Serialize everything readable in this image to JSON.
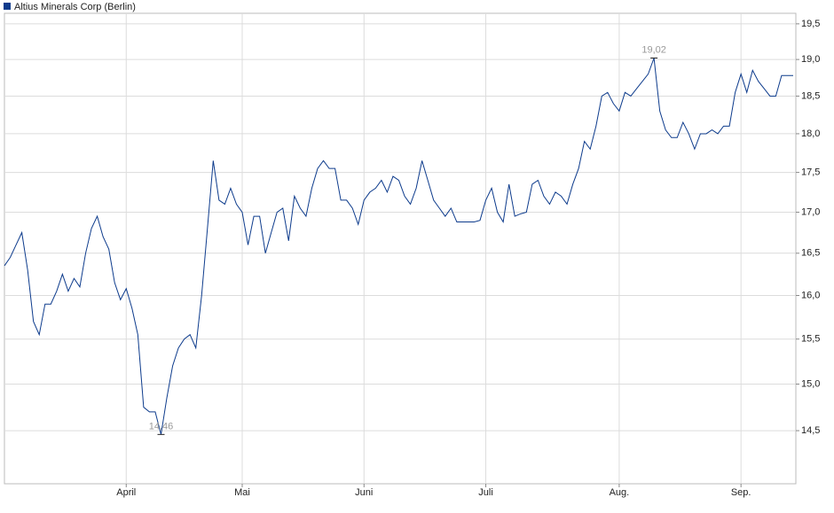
{
  "chart_data": {
    "type": "line",
    "categories": [
      null,
      null,
      null,
      null,
      null,
      null,
      null,
      null,
      null,
      null,
      null,
      null,
      null,
      null,
      null,
      null,
      null,
      null,
      null,
      null,
      null,
      "April",
      null,
      null,
      null,
      null,
      null,
      null,
      null,
      null,
      null,
      null,
      null,
      null,
      null,
      null,
      null,
      null,
      null,
      null,
      null,
      "Mai",
      null,
      null,
      null,
      null,
      null,
      null,
      null,
      null,
      null,
      null,
      null,
      null,
      null,
      null,
      null,
      null,
      null,
      null,
      null,
      null,
      "Juni",
      null,
      null,
      null,
      null,
      null,
      null,
      null,
      null,
      null,
      null,
      null,
      null,
      null,
      null,
      null,
      null,
      null,
      null,
      null,
      null,
      "Juli",
      null,
      null,
      null,
      null,
      null,
      null,
      null,
      null,
      null,
      null,
      null,
      null,
      null,
      null,
      null,
      null,
      null,
      null,
      null,
      null,
      null,
      null,
      "Aug.",
      null,
      null,
      null,
      null,
      null,
      null,
      null,
      null,
      null,
      null,
      null,
      null,
      null,
      null,
      null,
      null,
      null,
      null,
      null,
      null,
      "Sep.",
      null,
      null,
      null,
      null,
      null,
      null,
      null,
      null,
      null
    ],
    "series": [
      {
        "name": "Altius Minerals Corp (Berlin)",
        "color": "#0d3b8c",
        "values": [
          16.35,
          16.45,
          16.6,
          16.75,
          16.3,
          15.7,
          15.55,
          15.9,
          15.9,
          16.05,
          16.25,
          16.05,
          16.2,
          16.1,
          16.5,
          16.8,
          16.95,
          16.7,
          16.55,
          16.15,
          15.95,
          16.08,
          15.85,
          15.55,
          14.75,
          14.7,
          14.7,
          14.46,
          14.85,
          15.2,
          15.4,
          15.5,
          15.55,
          15.4,
          16.0,
          16.8,
          17.65,
          17.15,
          17.1,
          17.3,
          17.1,
          17.0,
          16.6,
          16.95,
          16.95,
          16.5,
          16.75,
          17.0,
          17.05,
          16.65,
          17.2,
          17.05,
          16.95,
          17.3,
          17.55,
          17.65,
          17.55,
          17.55,
          17.15,
          17.15,
          17.05,
          16.85,
          17.15,
          17.25,
          17.3,
          17.4,
          17.25,
          17.45,
          17.4,
          17.2,
          17.1,
          17.3,
          17.65,
          17.4,
          17.15,
          17.05,
          16.95,
          17.05,
          16.88,
          16.88,
          16.88,
          16.88,
          16.9,
          17.15,
          17.3,
          17.0,
          16.88,
          17.35,
          16.95,
          16.98,
          17.0,
          17.35,
          17.4,
          17.2,
          17.1,
          17.25,
          17.2,
          17.1,
          17.35,
          17.55,
          17.9,
          17.8,
          18.1,
          18.5,
          18.55,
          18.4,
          18.3,
          18.55,
          18.5,
          18.6,
          18.7,
          18.8,
          19.02,
          18.3,
          18.05,
          17.95,
          17.95,
          18.15,
          18.0,
          17.8,
          18.0,
          18.0,
          18.05,
          18.0,
          18.1,
          18.1,
          18.55,
          18.8,
          18.55,
          18.85,
          18.7,
          18.6,
          18.5,
          18.5,
          18.78,
          18.78,
          18.78
        ],
        "value_labels": [
          null,
          null,
          null,
          null,
          null,
          null,
          null,
          null,
          null,
          null,
          null,
          null,
          null,
          null,
          null,
          null,
          null,
          null,
          null,
          null,
          null,
          null,
          null,
          null,
          null,
          null,
          null,
          "14,46",
          null,
          null,
          null,
          null,
          null,
          null,
          null,
          null,
          null,
          null,
          null,
          null,
          null,
          null,
          null,
          null,
          null,
          null,
          null,
          null,
          null,
          null,
          null,
          null,
          null,
          null,
          null,
          null,
          null,
          null,
          null,
          null,
          null,
          null,
          null,
          null,
          null,
          null,
          null,
          null,
          null,
          null,
          null,
          null,
          null,
          null,
          null,
          null,
          null,
          null,
          null,
          null,
          null,
          null,
          null,
          null,
          null,
          null,
          null,
          null,
          null,
          null,
          null,
          null,
          null,
          null,
          null,
          null,
          null,
          null,
          null,
          null,
          null,
          null,
          null,
          null,
          null,
          null,
          null,
          null,
          null,
          null,
          null,
          null,
          "19,02",
          null,
          null,
          null,
          null,
          null,
          null,
          null,
          null,
          null,
          null,
          null,
          null,
          null,
          null,
          null,
          null,
          null,
          null,
          null,
          null,
          null,
          null,
          null
        ]
      }
    ],
    "ylim": [
      13.95,
      19.65
    ],
    "yticks": [
      {
        "value": 14.5,
        "label": "14,5"
      },
      {
        "value": 15,
        "label": "15,0"
      },
      {
        "value": 15.5,
        "label": "15,5"
      },
      {
        "value": 16,
        "label": "16,0"
      },
      {
        "value": 16.5,
        "label": "16,5"
      },
      {
        "value": 17,
        "label": "17,0"
      },
      {
        "value": 17.5,
        "label": "17,5"
      },
      {
        "value": 18,
        "label": "18,0"
      },
      {
        "value": 18.5,
        "label": "18,5"
      },
      {
        "value": 19,
        "label": "19,0"
      },
      {
        "value": 19.5,
        "label": "19,5"
      }
    ],
    "yscale": "log",
    "grid": true
  }
}
